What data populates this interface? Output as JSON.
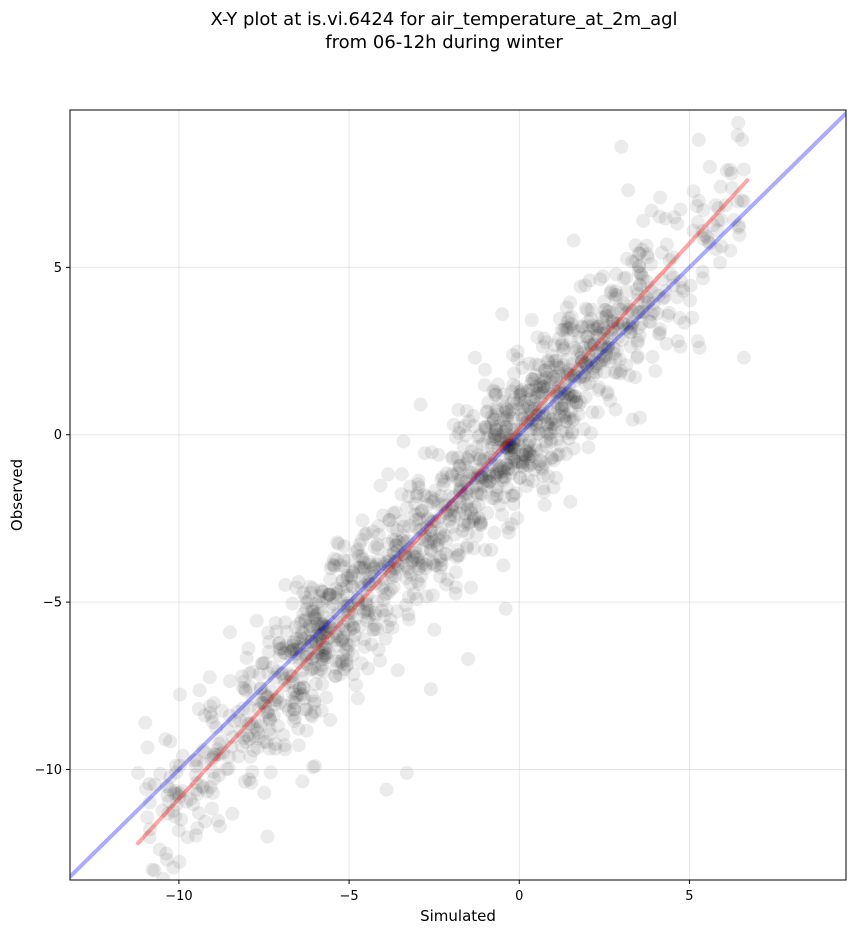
{
  "chart_data": {
    "type": "scatter",
    "title_line1": "X-Y plot at is.vi.6424 for air_temperature_at_2m_agl",
    "title_line2": "from 06-12h during winter",
    "xlabel": "Simulated",
    "ylabel": "Observed",
    "xlim": [
      -13.2,
      9.6
    ],
    "ylim": [
      -13.3,
      9.7
    ],
    "x_ticks": [
      -10,
      -5,
      0,
      5
    ],
    "y_ticks": [
      -10,
      -5,
      0,
      5
    ],
    "x_tick_labels": [
      "−10",
      "−5",
      "0",
      "5"
    ],
    "y_tick_labels": [
      "−10",
      "−5",
      "0",
      "5"
    ],
    "grid": true,
    "legend": "none",
    "point_color": "#000000",
    "point_alpha": 0.08,
    "reference_line": {
      "label": "",
      "color": "#0000ff",
      "alpha": 0.33,
      "x": [
        -13.2,
        9.6
      ],
      "y": [
        -13.2,
        9.6
      ]
    },
    "fit_line": {
      "label": "",
      "color": "#ff0000",
      "alpha": 0.35,
      "x": [
        -11.2,
        6.7
      ],
      "y": [
        -12.2,
        7.6
      ]
    },
    "outlier_points": [
      {
        "x": 3.0,
        "y": 8.6
      },
      {
        "x": 6.6,
        "y": 2.3
      },
      {
        "x": -3.3,
        "y": -10.1
      },
      {
        "x": -3.9,
        "y": -10.6
      },
      {
        "x": -0.4,
        "y": -5.2
      },
      {
        "x": -1.5,
        "y": -6.7
      },
      {
        "x": -8.8,
        "y": -11.7
      },
      {
        "x": -7.4,
        "y": -12.0
      },
      {
        "x": -11.2,
        "y": -10.1
      },
      {
        "x": -10.4,
        "y": -9.1
      },
      {
        "x": -3.4,
        "y": -0.2
      },
      {
        "x": -2.9,
        "y": 0.9
      },
      {
        "x": 1.6,
        "y": 5.8
      },
      {
        "x": 6.1,
        "y": 7.9
      },
      {
        "x": 5.6,
        "y": 8.0
      },
      {
        "x": -0.5,
        "y": 3.6
      },
      {
        "x": 1.5,
        "y": -2.0
      },
      {
        "x": 0.7,
        "y": -1.6
      },
      {
        "x": -6.0,
        "y": -9.9
      },
      {
        "x": -2.6,
        "y": -7.6
      },
      {
        "x": 5.3,
        "y": 2.6
      },
      {
        "x": 4.0,
        "y": 1.9
      },
      {
        "x": -8.5,
        "y": -5.9
      },
      {
        "x": 3.2,
        "y": 7.3
      },
      {
        "x": 6.2,
        "y": 5.5
      },
      {
        "x": -1.3,
        "y": 2.3
      }
    ],
    "point_cloud": {
      "count": 1500,
      "x_range": [
        -11.0,
        6.6
      ],
      "slope": 1.06,
      "intercept": 0.05,
      "noise_sd": 1.1
    }
  }
}
